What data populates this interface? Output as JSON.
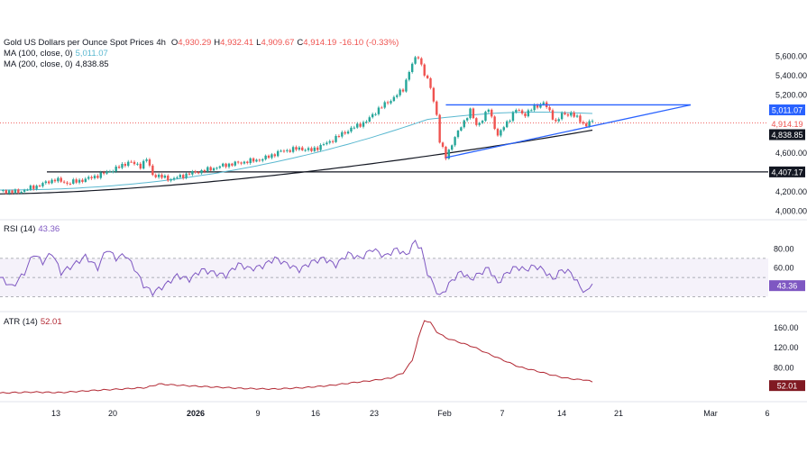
{
  "header": {
    "symbol": "Gold US Dollars per Ounce Spot Prices",
    "interval": "4h",
    "open_label": "O",
    "open": "4,930.29",
    "high_label": "H",
    "high": "4,932.41",
    "low_label": "L",
    "low": "4,909.67",
    "close_label": "C",
    "close": "4,914.19",
    "change": "-16.10 (-0.33%)"
  },
  "indicators": {
    "ma100": {
      "label": "MA (100, close, 0)",
      "value": "5,011.07",
      "color": "#5ab8d0"
    },
    "ma200": {
      "label": "MA (200, close, 0)",
      "value": "4,838.85",
      "color": "#131722"
    },
    "rsi": {
      "label": "RSI (14)",
      "value": "43.36",
      "color": "#7e57c2"
    },
    "atr": {
      "label": "ATR (14)",
      "value": "52.01",
      "color": "#b22833"
    }
  },
  "colors": {
    "up": "#26a69a",
    "down": "#ef5350",
    "trend": "#2962ff",
    "level": "#131722"
  },
  "chart_data": {
    "type": "candlestick",
    "title": "Gold US Dollars per Ounce Spot Prices, 4h",
    "x_ticks": [
      "13",
      "20",
      "2026",
      "9",
      "16",
      "23",
      "Feb",
      "7",
      "14",
      "21",
      "Mar",
      "6"
    ],
    "y_ticks": [
      "5,600.00",
      "5,400.00",
      "5,200.00",
      "4,600.00",
      "4,200.00",
      "4,000.00"
    ],
    "ylim": [
      3950,
      5700
    ],
    "price_path": [
      [
        0,
        4210
      ],
      [
        6,
        4200
      ],
      [
        12,
        4260
      ],
      [
        18,
        4330
      ],
      [
        22,
        4290
      ],
      [
        28,
        4330
      ],
      [
        33,
        4380
      ],
      [
        38,
        4440
      ],
      [
        42,
        4510
      ],
      [
        46,
        4470
      ],
      [
        48,
        4540
      ],
      [
        50,
        4380
      ],
      [
        56,
        4330
      ],
      [
        62,
        4390
      ],
      [
        68,
        4430
      ],
      [
        74,
        4480
      ],
      [
        80,
        4510
      ],
      [
        86,
        4540
      ],
      [
        92,
        4620
      ],
      [
        98,
        4650
      ],
      [
        102,
        4630
      ],
      [
        108,
        4720
      ],
      [
        112,
        4800
      ],
      [
        116,
        4870
      ],
      [
        120,
        4930
      ],
      [
        124,
        5060
      ],
      [
        128,
        5150
      ],
      [
        132,
        5260
      ],
      [
        134,
        5450
      ],
      [
        136,
        5580
      ],
      [
        137,
        5600
      ],
      [
        139,
        5420
      ],
      [
        141,
        5280
      ],
      [
        143,
        5000
      ],
      [
        144,
        4720
      ],
      [
        146,
        4560
      ],
      [
        148,
        4700
      ],
      [
        151,
        4880
      ],
      [
        154,
        5040
      ],
      [
        156,
        4890
      ],
      [
        158,
        4950
      ],
      [
        160,
        5060
      ],
      [
        163,
        4780
      ],
      [
        166,
        4920
      ],
      [
        169,
        5050
      ],
      [
        172,
        5000
      ],
      [
        175,
        5080
      ],
      [
        178,
        5120
      ],
      [
        180,
        5030
      ],
      [
        182,
        4920
      ],
      [
        184,
        5000
      ],
      [
        187,
        5010
      ],
      [
        190,
        4940
      ],
      [
        192,
        4880
      ],
      [
        193,
        4930
      ],
      [
        194,
        4914.19
      ]
    ],
    "levels": [
      {
        "label": "4,407.17",
        "value": 4407.17
      }
    ],
    "triangle": {
      "top": 5100,
      "bottom_start": 4555,
      "apex": 5100
    },
    "ma100_value": 5011.07,
    "ma200_value": 4838.85,
    "last_value": 4914.19,
    "rsi": {
      "ylim": [
        20,
        100
      ],
      "y_ticks": [
        "80.00",
        "60.00"
      ],
      "bands": [
        70,
        50,
        30
      ],
      "path": [
        [
          0,
          50
        ],
        [
          4,
          40
        ],
        [
          8,
          55
        ],
        [
          11,
          75
        ],
        [
          14,
          66
        ],
        [
          17,
          76
        ],
        [
          20,
          55
        ],
        [
          24,
          63
        ],
        [
          28,
          72
        ],
        [
          32,
          60
        ],
        [
          35,
          80
        ],
        [
          38,
          70
        ],
        [
          41,
          74
        ],
        [
          44,
          60
        ],
        [
          47,
          42
        ],
        [
          50,
          34
        ],
        [
          54,
          42
        ],
        [
          58,
          52
        ],
        [
          62,
          48
        ],
        [
          66,
          58
        ],
        [
          70,
          55
        ],
        [
          74,
          52
        ],
        [
          78,
          64
        ],
        [
          82,
          59
        ],
        [
          86,
          62
        ],
        [
          90,
          70
        ],
        [
          94,
          64
        ],
        [
          98,
          58
        ],
        [
          102,
          66
        ],
        [
          106,
          70
        ],
        [
          110,
          63
        ],
        [
          114,
          75
        ],
        [
          118,
          70
        ],
        [
          122,
          80
        ],
        [
          126,
          72
        ],
        [
          130,
          80
        ],
        [
          133,
          73
        ],
        [
          136,
          88
        ],
        [
          138,
          79
        ],
        [
          140,
          55
        ],
        [
          142,
          42
        ],
        [
          144,
          30
        ],
        [
          146,
          38
        ],
        [
          148,
          47
        ],
        [
          151,
          56
        ],
        [
          154,
          48
        ],
        [
          157,
          54
        ],
        [
          160,
          60
        ],
        [
          163,
          44
        ],
        [
          166,
          55
        ],
        [
          169,
          61
        ],
        [
          172,
          58
        ],
        [
          175,
          62
        ],
        [
          178,
          58
        ],
        [
          181,
          48
        ],
        [
          184,
          58
        ],
        [
          187,
          55
        ],
        [
          190,
          40
        ],
        [
          192,
          34
        ],
        [
          194,
          43.36
        ]
      ]
    },
    "atr": {
      "ylim": [
        20,
        185
      ],
      "y_ticks": [
        "160.00",
        "120.00",
        "80.00"
      ],
      "path": [
        [
          0,
          30
        ],
        [
          10,
          32
        ],
        [
          20,
          31
        ],
        [
          30,
          35
        ],
        [
          40,
          38
        ],
        [
          48,
          41
        ],
        [
          52,
          48
        ],
        [
          60,
          45
        ],
        [
          70,
          42
        ],
        [
          80,
          39
        ],
        [
          90,
          38
        ],
        [
          100,
          41
        ],
        [
          108,
          45
        ],
        [
          116,
          51
        ],
        [
          122,
          55
        ],
        [
          128,
          60
        ],
        [
          132,
          70
        ],
        [
          135,
          95
        ],
        [
          137,
          140
        ],
        [
          139,
          175
        ],
        [
          141,
          170
        ],
        [
          143,
          152
        ],
        [
          146,
          140
        ],
        [
          150,
          132
        ],
        [
          155,
          122
        ],
        [
          160,
          108
        ],
        [
          165,
          95
        ],
        [
          170,
          82
        ],
        [
          175,
          75
        ],
        [
          180,
          67
        ],
        [
          185,
          60
        ],
        [
          189,
          57
        ],
        [
          192,
          56
        ],
        [
          194,
          52.01
        ]
      ]
    }
  }
}
